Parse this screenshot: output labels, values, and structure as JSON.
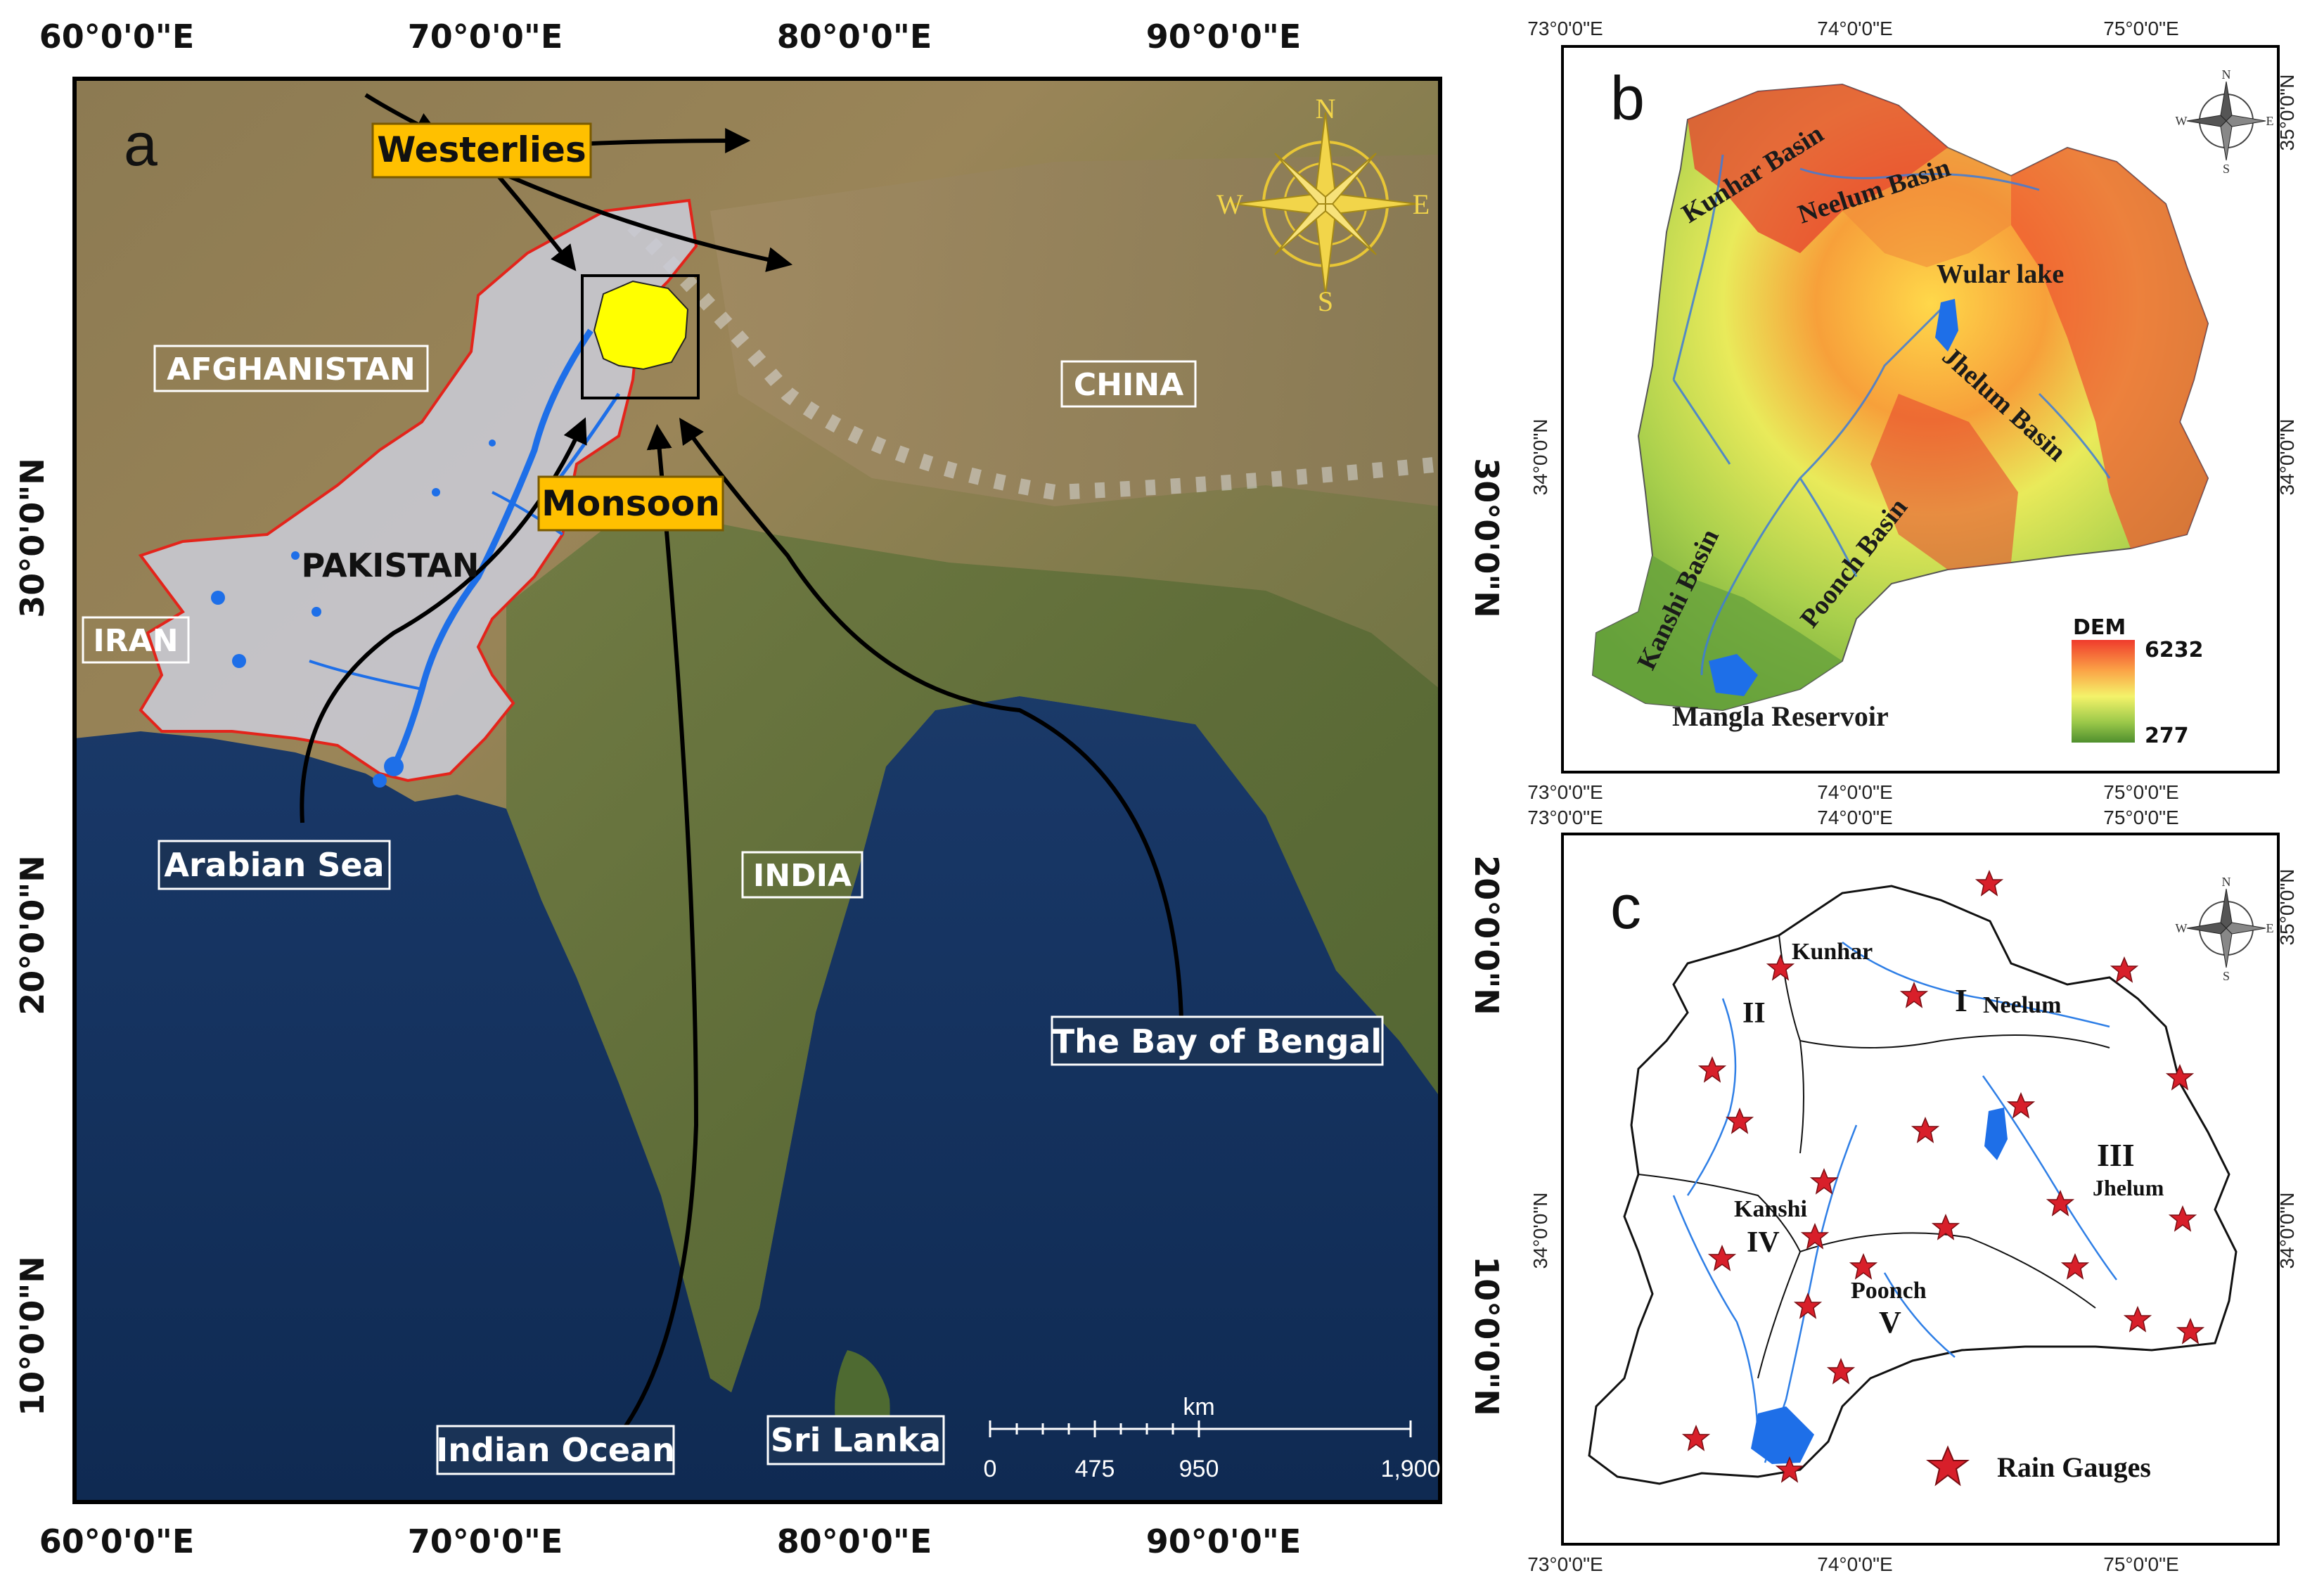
{
  "panel_a": {
    "letter": "a",
    "top_ticks": [
      "60°0'0\"E",
      "70°0'0\"E",
      "80°0'0\"E",
      "90°0'0\"E"
    ],
    "bottom_ticks": [
      "60°0'0\"E",
      "70°0'0\"E",
      "80°0'0\"E",
      "90°0'0\"E"
    ],
    "left_ticks": [
      "30°0'0\"N",
      "20°0'0\"N",
      "10°0'0\"N"
    ],
    "right_ticks": [
      "30°0'0\"N",
      "20°0'0\"N",
      "10°0'0\"N"
    ],
    "labels": {
      "westerlies": "Westerlies",
      "monsoon": "Monsoon",
      "afghanistan": "AFGHANISTAN",
      "china": "CHINA",
      "pakistan": "PAKISTAN",
      "iran": "IRAN",
      "india": "INDIA",
      "arabian_sea": "Arabian Sea",
      "bay_of_bengal": "The Bay of Bengal",
      "indian_ocean": "Indian Ocean",
      "sri_lanka": "Sri Lanka"
    },
    "compass": {
      "n": "N",
      "e": "E",
      "s": "S",
      "w": "W"
    },
    "scale_bar": {
      "unit": "km",
      "ticks": [
        "0",
        "475",
        "950",
        "1,900"
      ]
    },
    "colors": {
      "callout": "#ffc000",
      "boundary": "#e3241b",
      "study_area": "#ffff00",
      "water": "#1e6fe8"
    }
  },
  "panel_b": {
    "letter": "b",
    "top_ticks": [
      "73°0'0\"E",
      "74°0'0\"E",
      "75°0'0\"E"
    ],
    "bottom_ticks": [
      "73°0'0\"E",
      "74°0'0\"E",
      "75°0'0\"E"
    ],
    "left_ticks": [
      "34°0'0\"N"
    ],
    "right_ticks": [
      "35°0'0\"N",
      "34°0'0\"N"
    ],
    "basins": [
      "Kunhar Basin",
      "Neelum Basin",
      "Wular lake",
      "Jhelum Basin",
      "Poonch Basin",
      "Kanshi Basin",
      "Mangla Reservoir"
    ],
    "legend": {
      "title": "DEM",
      "max": "6232",
      "min": "277"
    },
    "compass": {
      "n": "N",
      "e": "E",
      "s": "S",
      "w": "W"
    }
  },
  "panel_c": {
    "letter": "c",
    "top_ticks": [
      "73°0'0\"E",
      "74°0'0\"E",
      "75°0'0\"E"
    ],
    "bottom_ticks": [
      "73°0'0\"E",
      "74°0'0\"E",
      "75°0'0\"E"
    ],
    "left_ticks": [
      "34°0'0\"N"
    ],
    "right_ticks": [
      "35°0'0\"N",
      "34°0'0\"N"
    ],
    "sub_basins": [
      {
        "numeral": "I",
        "name": "Neelum"
      },
      {
        "numeral": "II",
        "name": "Kunhar"
      },
      {
        "numeral": "III",
        "name": "Jhelum"
      },
      {
        "numeral": "IV",
        "name": "Kanshi"
      },
      {
        "numeral": "V",
        "name": "Poonch"
      }
    ],
    "legend": {
      "label": "Rain Gauges"
    },
    "compass": {
      "n": "N",
      "e": "E",
      "s": "S",
      "w": "W"
    }
  }
}
